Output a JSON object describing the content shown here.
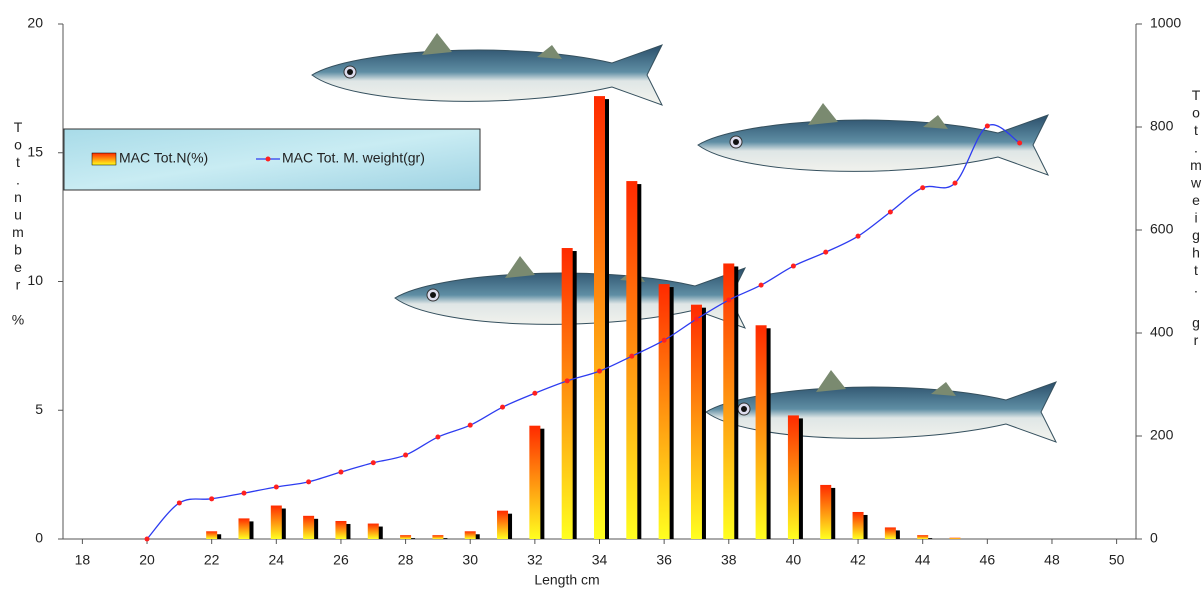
{
  "chart_data": {
    "type": "bar-line",
    "x_label": "Length cm",
    "y_label": "Tot.number %",
    "y2_label": "Tot.mweight. gr",
    "xlim": [
      17.4,
      50.6
    ],
    "xticks": [
      18,
      20,
      22,
      24,
      26,
      28,
      30,
      32,
      34,
      36,
      38,
      40,
      42,
      44,
      46,
      48,
      50
    ],
    "ylim": [
      0,
      20
    ],
    "yticks": [
      0,
      5,
      10,
      15,
      20
    ],
    "y2lim": [
      0,
      1000
    ],
    "y2ticks": [
      0,
      200,
      400,
      600,
      800,
      1000
    ],
    "series": [
      {
        "name": "MAC Tot.N(%)",
        "type": "bar",
        "color": "#ff2a00",
        "x": [
          22,
          23,
          24,
          25,
          26,
          27,
          28,
          29,
          30,
          31,
          32,
          33,
          34,
          35,
          36,
          37,
          38,
          39,
          40,
          41,
          42,
          43,
          44,
          45
        ],
        "values": [
          0.3,
          0.8,
          1.3,
          0.9,
          0.7,
          0.6,
          0.15,
          0.15,
          0.3,
          1.1,
          4.4,
          11.3,
          17.2,
          13.9,
          9.9,
          9.1,
          10.7,
          8.3,
          4.8,
          2.1,
          1.05,
          0.45,
          0.15,
          0.05
        ]
      },
      {
        "name": "MAC Tot. M. weight(gr)",
        "type": "line",
        "axis": "y2",
        "color": "#2d3cf0",
        "marker_color": "#ff2020",
        "x": [
          20,
          21,
          22,
          23,
          24,
          25,
          26,
          27,
          28,
          29,
          30,
          31,
          32,
          33,
          34,
          35,
          36,
          37,
          38,
          39,
          40,
          41,
          42,
          43,
          44,
          45,
          46,
          47
        ],
        "values": [
          0,
          70,
          78,
          89,
          101,
          111,
          130,
          148,
          163,
          198,
          221,
          256,
          283,
          307,
          326,
          355,
          386,
          427,
          464,
          493,
          530,
          557,
          588,
          635,
          682,
          691,
          802,
          769
        ]
      }
    ]
  }
}
